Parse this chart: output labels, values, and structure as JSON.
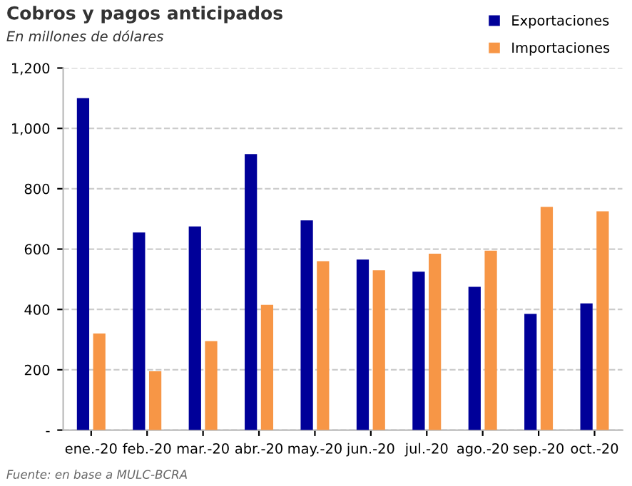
{
  "chart_data": {
    "type": "bar",
    "title": "Cobros y pagos anticipados",
    "subtitle": "En millones de dólares",
    "categories": [
      "ene.-20",
      "feb.-20",
      "mar.-20",
      "abr.-20",
      "may.-20",
      "jun.-20",
      "jul.-20",
      "ago.-20",
      "sep.-20",
      "oct.-20"
    ],
    "series": [
      {
        "name": "Exportaciones",
        "color": "#000099",
        "values": [
          1100,
          655,
          675,
          915,
          695,
          565,
          525,
          475,
          385,
          420
        ]
      },
      {
        "name": "Importaciones",
        "color": "#f79646",
        "values": [
          320,
          195,
          295,
          415,
          560,
          530,
          585,
          595,
          740,
          725
        ]
      }
    ],
    "ylim": [
      0,
      1200
    ],
    "yticks": [
      {
        "value": 0,
        "label": "-"
      },
      {
        "value": 200,
        "label": "200"
      },
      {
        "value": 400,
        "label": "400"
      },
      {
        "value": 600,
        "label": "600"
      },
      {
        "value": 800,
        "label": "800"
      },
      {
        "value": 1000,
        "label": "1,000"
      },
      {
        "value": 1200,
        "label": "1,200"
      }
    ],
    "grid": "y",
    "legend": "top right",
    "annotations": [
      "Fuente: en base a MULC-BCRA"
    ]
  }
}
